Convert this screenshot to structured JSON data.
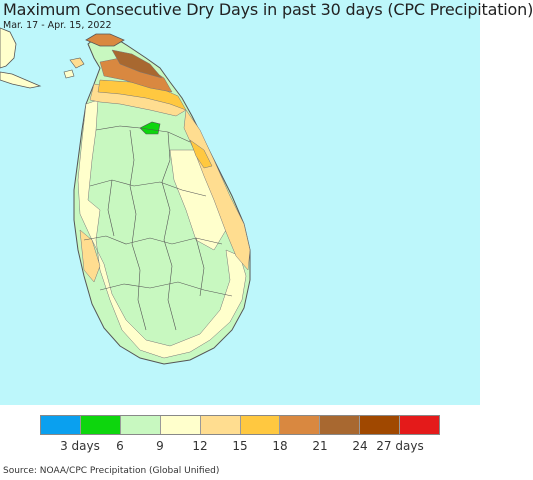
{
  "title": "Maximum Consecutive Dry Days in past 30 days (CPC Precipitation)",
  "date_range": "Mar. 17 - Apr. 15, 2022",
  "source": "Source: NOAA/CPC Precipitation (Global Unified)",
  "colors": {
    "ocean": "#bdf7fb",
    "land_outline": "#555555",
    "india_land": "#ffffff"
  },
  "legend": {
    "swatches": [
      "#0aa0ef",
      "#0dd60d",
      "#c8f8c0",
      "#ffffcc",
      "#ffdd90",
      "#ffc840",
      "#d98840",
      "#a86830",
      "#a04800",
      "#e41a1a"
    ],
    "ticks": [
      "3 days",
      "6",
      "9",
      "12",
      "15",
      "18",
      "21",
      "24",
      "27 days"
    ]
  }
}
